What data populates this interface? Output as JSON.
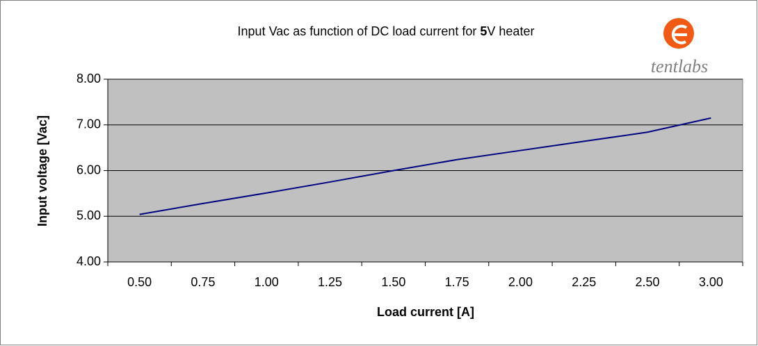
{
  "chart_data": {
    "type": "line",
    "title": [
      "Input Vac as function of DC load current for ",
      "5",
      "V heater"
    ],
    "logo": "tentlabs",
    "x_label": "Load current [A]",
    "y_label": "Input voltage [Vac]",
    "categories": [
      "0.50",
      "0.75",
      "1.00",
      "1.25",
      "1.50",
      "1.75",
      "2.00",
      "2.25",
      "2.50",
      "3.00"
    ],
    "series": [
      {
        "name": "Input Vac",
        "color": "#000080",
        "values": [
          5.04,
          5.28,
          5.51,
          5.75,
          6.0,
          6.24,
          6.44,
          6.64,
          6.84,
          7.15
        ]
      }
    ],
    "ylim": [
      4,
      8
    ],
    "yticks": [
      {
        "value": 4,
        "label": "4.00"
      },
      {
        "value": 5,
        "label": "5.00"
      },
      {
        "value": 6,
        "label": "6.00"
      },
      {
        "value": 7,
        "label": "7.00"
      },
      {
        "value": 8,
        "label": "8.00"
      }
    ],
    "grid": true,
    "plot_background": "#c0c0c0"
  }
}
